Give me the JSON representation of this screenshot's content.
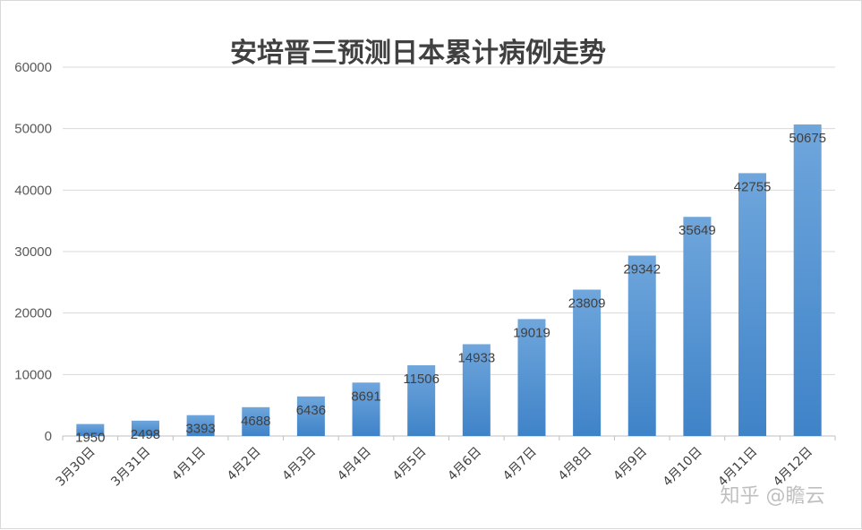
{
  "chart_data": {
    "type": "bar",
    "title": "安培晋三预测日本累计病例走势",
    "xlabel": "",
    "ylabel": "",
    "categories": [
      "3月30日",
      "3月31日",
      "4月1日",
      "4月2日",
      "4月3日",
      "4月4日",
      "4月5日",
      "4月6日",
      "4月7日",
      "4月8日",
      "4月9日",
      "4月10日",
      "4月11日",
      "4月12日"
    ],
    "values": [
      1950,
      2498,
      3393,
      4688,
      6436,
      8691,
      11506,
      14933,
      19019,
      23809,
      29342,
      35649,
      42755,
      50675
    ],
    "value_labels": [
      "1950",
      "2498",
      "3393",
      "4688",
      "6436",
      "8691",
      "11506",
      "14933",
      "19019",
      "23809",
      "29342",
      "35649",
      "42755",
      "50675"
    ],
    "ylim": [
      0,
      60000
    ],
    "yticks": [
      0,
      10000,
      20000,
      30000,
      40000,
      50000,
      60000
    ],
    "ytick_labels": [
      "0",
      "10000",
      "20000",
      "30000",
      "40000",
      "50000",
      "60000"
    ],
    "grid": true,
    "legend": "none",
    "bar_color_top": "#6fa6dc",
    "bar_color_bottom": "#3f83c8"
  },
  "watermark": "知乎 @瞻云"
}
